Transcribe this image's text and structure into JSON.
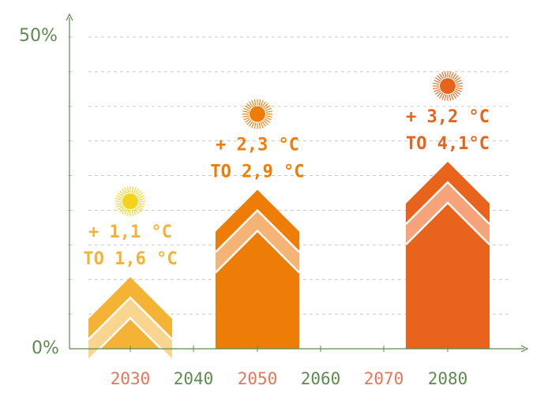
{
  "chart_data": {
    "type": "bar",
    "title": "",
    "xlabel": "",
    "ylabel": "",
    "ylim": [
      0,
      50
    ],
    "y_tick_labels": [
      "0%",
      "50%"
    ],
    "x_tick_labels": [
      {
        "label": "2030",
        "color": "#e8745a"
      },
      {
        "label": "2040",
        "color": "#5f8a4e"
      },
      {
        "label": "2050",
        "color": "#e8745a"
      },
      {
        "label": "2060",
        "color": "#5f8a4e"
      },
      {
        "label": "2070",
        "color": "#e8745a"
      },
      {
        "label": "2080",
        "color": "#5f8a4e"
      }
    ],
    "grid": "dashed horizontal",
    "bars": [
      {
        "category": "2030",
        "value": 11.5,
        "annotation": [
          "+ 1,1 °C",
          "TO  1,6 °C"
        ],
        "color": "#f5b335",
        "band_color": "#fad58f",
        "sun_color": "#f7d21a"
      },
      {
        "category": "2050",
        "value": 25.5,
        "annotation": [
          "+ 2,3 °C",
          "TO  2,9 °C"
        ],
        "color": "#ee7d07",
        "band_color": "#f6b376",
        "sun_color": "#ee7d07"
      },
      {
        "category": "2080",
        "value": 30.0,
        "annotation": [
          "+ 3,2 °C",
          "TO  4,1°C"
        ],
        "color": "#e8631b",
        "band_color": "#f4a37a",
        "sun_color": "#e8631b"
      }
    ],
    "colors": {
      "axis": "#5f8a4e",
      "grid": "#c8c8c8"
    }
  }
}
